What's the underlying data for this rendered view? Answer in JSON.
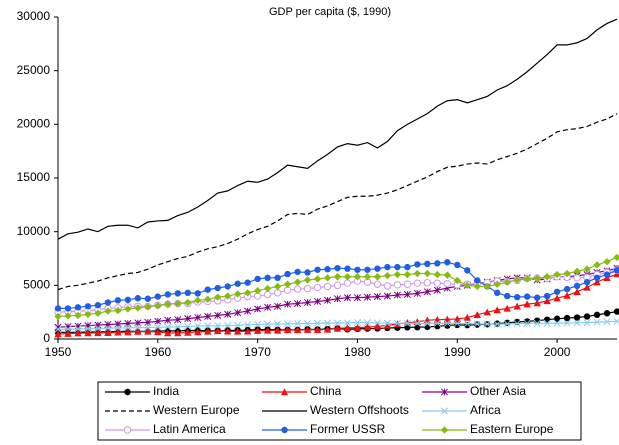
{
  "chart_data": {
    "type": "line",
    "title": "GDP per capita ($, 1990)",
    "x": [
      1950,
      1951,
      1952,
      1953,
      1954,
      1955,
      1956,
      1957,
      1958,
      1959,
      1960,
      1961,
      1962,
      1963,
      1964,
      1965,
      1966,
      1967,
      1968,
      1969,
      1970,
      1971,
      1972,
      1973,
      1974,
      1975,
      1976,
      1977,
      1978,
      1979,
      1980,
      1981,
      1982,
      1983,
      1984,
      1985,
      1986,
      1987,
      1988,
      1989,
      1990,
      1991,
      1992,
      1993,
      1994,
      1995,
      1996,
      1997,
      1998,
      1999,
      2000,
      2001,
      2002,
      2003,
      2004,
      2005,
      2006
    ],
    "xlim": [
      1950,
      2006
    ],
    "xticks": [
      1950,
      1960,
      1970,
      1980,
      1990,
      2000
    ],
    "ylim": [
      0,
      30000
    ],
    "yticks": [
      0,
      5000,
      10000,
      15000,
      20000,
      25000,
      30000
    ],
    "series": [
      {
        "name": "India",
        "color": "#000000",
        "marker": "circle",
        "dash": false,
        "values": [
          620,
          620,
          630,
          650,
          670,
          680,
          700,
          720,
          700,
          730,
          750,
          760,
          760,
          780,
          800,
          770,
          760,
          800,
          810,
          830,
          870,
          870,
          860,
          850,
          850,
          900,
          890,
          930,
          970,
          900,
          940,
          970,
          980,
          1030,
          1050,
          1080,
          1100,
          1130,
          1190,
          1250,
          1310,
          1290,
          1340,
          1370,
          1440,
          1510,
          1590,
          1640,
          1710,
          1800,
          1890,
          1950,
          2000,
          2100,
          2250,
          2400,
          2550
        ]
      },
      {
        "name": "China",
        "color": "#ee1111",
        "marker": "triangle",
        "dash": false,
        "values": [
          450,
          500,
          540,
          560,
          570,
          580,
          620,
          640,
          690,
          700,
          660,
          560,
          560,
          600,
          650,
          700,
          750,
          720,
          700,
          720,
          780,
          800,
          800,
          840,
          840,
          870,
          850,
          890,
          980,
          1040,
          1060,
          1100,
          1180,
          1270,
          1400,
          1520,
          1600,
          1750,
          1800,
          1830,
          1870,
          2000,
          2250,
          2500,
          2700,
          2850,
          3050,
          3250,
          3350,
          3550,
          3800,
          4050,
          4400,
          4800,
          5300,
          5700,
          6050
        ]
      },
      {
        "name": "Other Asia",
        "color": "#800080",
        "marker": "star",
        "dash": false,
        "values": [
          1100,
          1150,
          1200,
          1250,
          1300,
          1350,
          1400,
          1450,
          1500,
          1550,
          1650,
          1750,
          1800,
          1900,
          2000,
          2100,
          2200,
          2300,
          2450,
          2600,
          2800,
          2950,
          3050,
          3250,
          3300,
          3400,
          3500,
          3600,
          3750,
          3850,
          3850,
          3900,
          3950,
          4000,
          4100,
          4150,
          4250,
          4400,
          4550,
          4750,
          4900,
          5000,
          5150,
          5300,
          5450,
          5600,
          5700,
          5700,
          5500,
          5600,
          5800,
          5800,
          5900,
          6000,
          6200,
          6350,
          6600
        ]
      },
      {
        "name": "Western Europe",
        "color": "#000000",
        "marker": "none",
        "dash": true,
        "values": [
          4600,
          4900,
          5000,
          5200,
          5400,
          5700,
          5900,
          6100,
          6200,
          6500,
          6900,
          7200,
          7500,
          7700,
          8100,
          8400,
          8600,
          8900,
          9300,
          9800,
          10200,
          10500,
          11000,
          11600,
          11700,
          11600,
          12100,
          12400,
          12800,
          13200,
          13300,
          13300,
          13400,
          13600,
          13900,
          14300,
          14700,
          15100,
          15600,
          16000,
          16100,
          16300,
          16400,
          16300,
          16700,
          17000,
          17300,
          17700,
          18200,
          18700,
          19300,
          19500,
          19600,
          19800,
          20200,
          20500,
          21000
        ]
      },
      {
        "name": "Western Offshoots",
        "color": "#000000",
        "marker": "none",
        "dash": false,
        "values": [
          9300,
          9800,
          9950,
          10250,
          10000,
          10500,
          10600,
          10600,
          10350,
          10900,
          11000,
          11050,
          11500,
          11800,
          12300,
          12900,
          13600,
          13800,
          14300,
          14700,
          14600,
          14900,
          15500,
          16200,
          16050,
          15900,
          16600,
          17200,
          17900,
          18200,
          18050,
          18300,
          17800,
          18400,
          19400,
          20000,
          20500,
          21000,
          21700,
          22200,
          22300,
          22000,
          22300,
          22600,
          23200,
          23600,
          24200,
          24900,
          25700,
          26500,
          27400,
          27400,
          27600,
          28000,
          28800,
          29400,
          29800
        ]
      },
      {
        "name": "Africa",
        "color": "#88ccee",
        "marker": "x",
        "dash": false,
        "values": [
          900,
          920,
          940,
          950,
          970,
          1000,
          1020,
          1040,
          1050,
          1070,
          1100,
          1110,
          1130,
          1170,
          1200,
          1230,
          1240,
          1240,
          1270,
          1320,
          1360,
          1380,
          1400,
          1410,
          1440,
          1440,
          1470,
          1480,
          1480,
          1500,
          1530,
          1520,
          1500,
          1470,
          1460,
          1460,
          1460,
          1450,
          1460,
          1460,
          1450,
          1430,
          1400,
          1390,
          1390,
          1410,
          1440,
          1460,
          1460,
          1460,
          1480,
          1490,
          1510,
          1530,
          1570,
          1610,
          1650
        ]
      },
      {
        "name": "Latin America",
        "color": "#cc99ee",
        "marker": "open-circle",
        "dash": false,
        "values": [
          2500,
          2550,
          2600,
          2650,
          2750,
          2850,
          2900,
          3000,
          3050,
          3050,
          3150,
          3250,
          3300,
          3300,
          3450,
          3500,
          3550,
          3650,
          3800,
          3950,
          4000,
          4150,
          4300,
          4550,
          4650,
          4700,
          4800,
          4900,
          5000,
          5200,
          5400,
          5300,
          5100,
          4950,
          5050,
          5100,
          5200,
          5250,
          5200,
          5150,
          5050,
          5100,
          5150,
          5250,
          5400,
          5350,
          5450,
          5650,
          5700,
          5650,
          5800,
          5750,
          5700,
          5750,
          6000,
          6200,
          6400
        ]
      },
      {
        "name": "Former USSR",
        "color": "#1e5fe6",
        "marker": "circle",
        "dash": false,
        "values": [
          2850,
          2850,
          2950,
          3050,
          3150,
          3400,
          3600,
          3650,
          3800,
          3750,
          3950,
          4150,
          4250,
          4300,
          4250,
          4600,
          4750,
          4900,
          5150,
          5250,
          5600,
          5700,
          5700,
          6050,
          6250,
          6200,
          6450,
          6500,
          6600,
          6550,
          6450,
          6450,
          6550,
          6700,
          6700,
          6700,
          6950,
          7000,
          7050,
          7150,
          6900,
          6400,
          5450,
          4900,
          4300,
          4000,
          3900,
          3950,
          3850,
          4000,
          4400,
          4650,
          4950,
          5300,
          5700,
          6000,
          6400
        ]
      },
      {
        "name": "Eastern Europe",
        "color": "#88bb11",
        "marker": "diamond",
        "dash": false,
        "values": [
          2100,
          2150,
          2200,
          2300,
          2400,
          2600,
          2650,
          2800,
          2900,
          3000,
          3100,
          3250,
          3300,
          3400,
          3600,
          3700,
          3900,
          4000,
          4200,
          4300,
          4500,
          4700,
          4900,
          5100,
          5300,
          5500,
          5600,
          5700,
          5800,
          5800,
          5800,
          5800,
          5800,
          5900,
          6000,
          6000,
          6100,
          6100,
          6000,
          5950,
          5450,
          5000,
          4900,
          4900,
          5100,
          5300,
          5500,
          5600,
          5650,
          5800,
          6000,
          6100,
          6300,
          6500,
          6900,
          7200,
          7600
        ]
      }
    ]
  }
}
